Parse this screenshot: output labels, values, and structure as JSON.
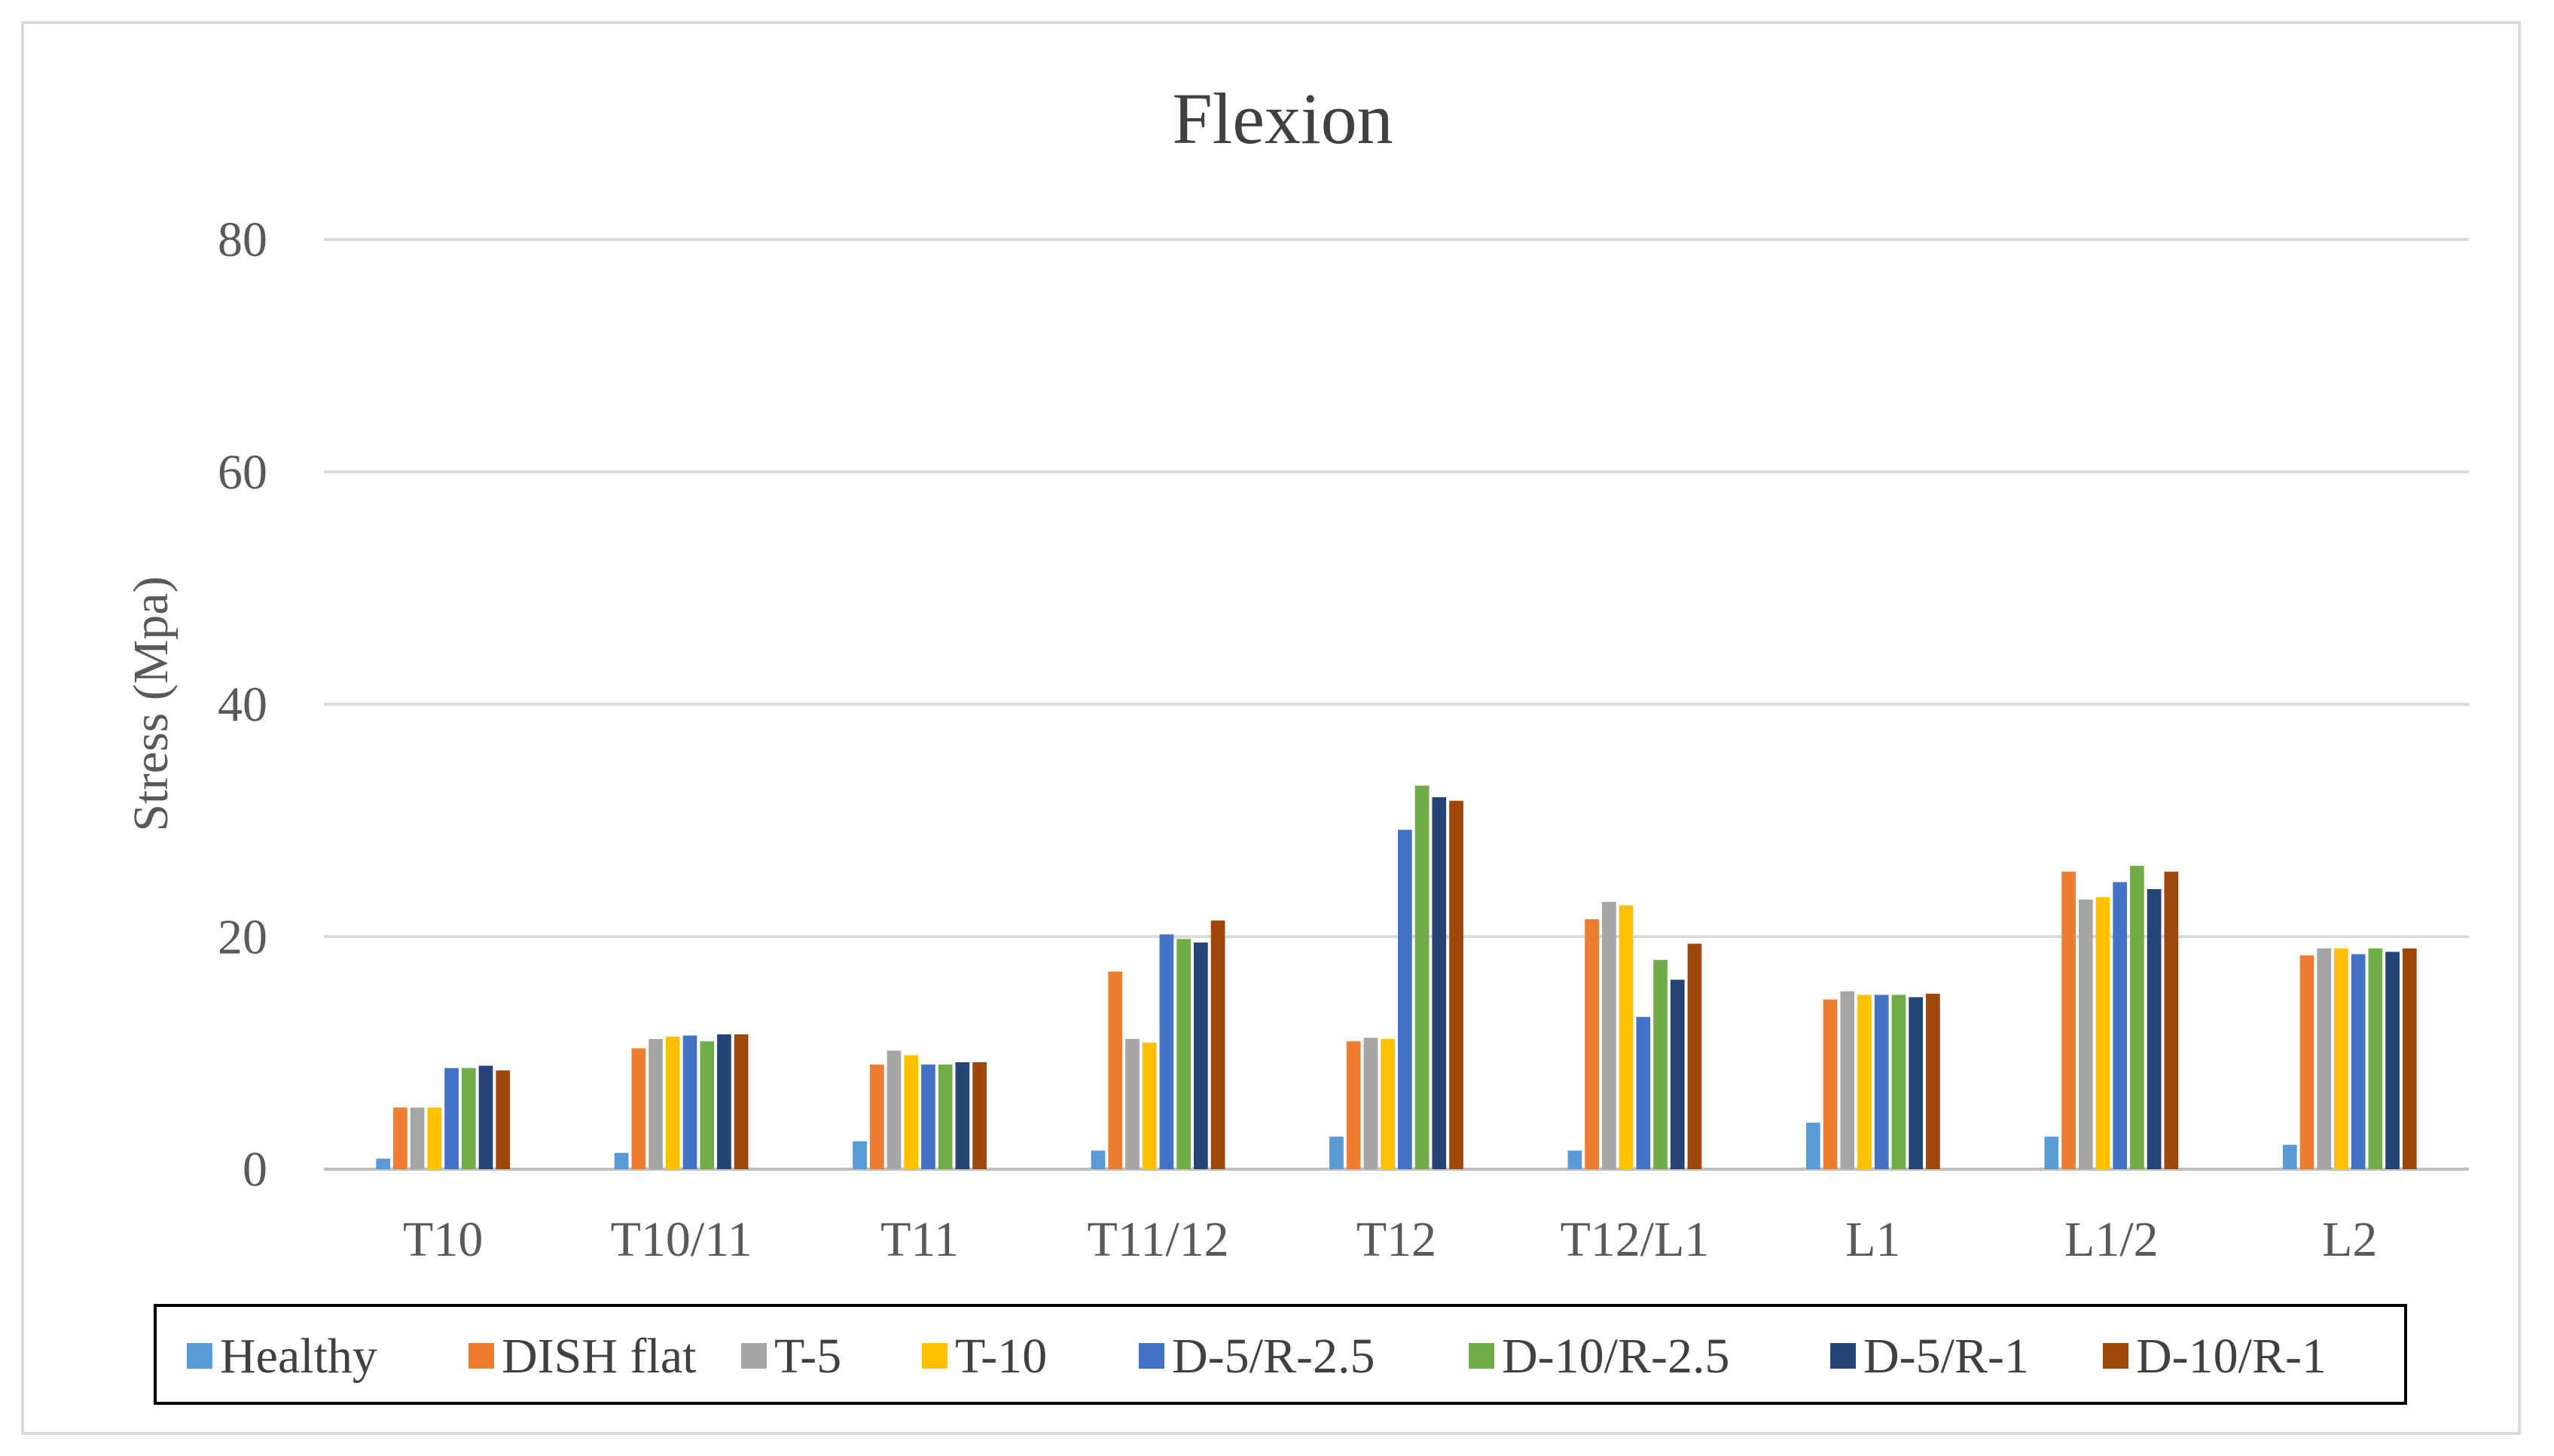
{
  "chart_data": {
    "type": "bar",
    "title": "Flexion",
    "xlabel": "",
    "ylabel": "Stress (Mpa)",
    "ylim": [
      0,
      80
    ],
    "yticks": [
      0,
      20,
      40,
      60,
      80
    ],
    "grid": true,
    "legend_position": "bottom",
    "categories": [
      "T10",
      "T10/11",
      "T11",
      "T11/12",
      "T12",
      "T12/L1",
      "L1",
      "L1/2",
      "L2"
    ],
    "series": [
      {
        "name": "Healthy",
        "color": "#5B9BD5",
        "values": [
          0.9,
          1.4,
          2.4,
          1.6,
          2.8,
          1.6,
          4.0,
          2.8,
          2.1
        ]
      },
      {
        "name": "DISH flat",
        "color": "#ED7D31",
        "values": [
          5.3,
          10.4,
          9.0,
          17.0,
          11.0,
          21.5,
          14.6,
          25.6,
          18.4
        ]
      },
      {
        "name": "T-5",
        "color": "#A5A5A5",
        "values": [
          5.3,
          11.2,
          10.2,
          11.2,
          11.3,
          23.0,
          15.3,
          23.2,
          19.0
        ]
      },
      {
        "name": "T-10",
        "color": "#FFC000",
        "values": [
          5.3,
          11.4,
          9.8,
          10.9,
          11.2,
          22.7,
          15.0,
          23.4,
          19.0
        ]
      },
      {
        "name": "D-5/R-2.5",
        "color": "#4472C4",
        "values": [
          8.7,
          11.5,
          9.0,
          20.2,
          29.2,
          13.1,
          15.0,
          24.7,
          18.5
        ]
      },
      {
        "name": "D-10/R-2.5",
        "color": "#70AD47",
        "values": [
          8.7,
          11.0,
          9.0,
          19.8,
          33.0,
          18.0,
          15.0,
          26.1,
          19.0
        ]
      },
      {
        "name": "D-5/R-1",
        "color": "#264478",
        "values": [
          8.9,
          11.6,
          9.2,
          19.5,
          32.0,
          16.3,
          14.8,
          24.1,
          18.7
        ]
      },
      {
        "name": "D-10/R-1",
        "color": "#9E480E",
        "values": [
          8.5,
          11.6,
          9.2,
          21.4,
          31.7,
          19.4,
          15.1,
          25.6,
          19.0
        ]
      }
    ]
  }
}
